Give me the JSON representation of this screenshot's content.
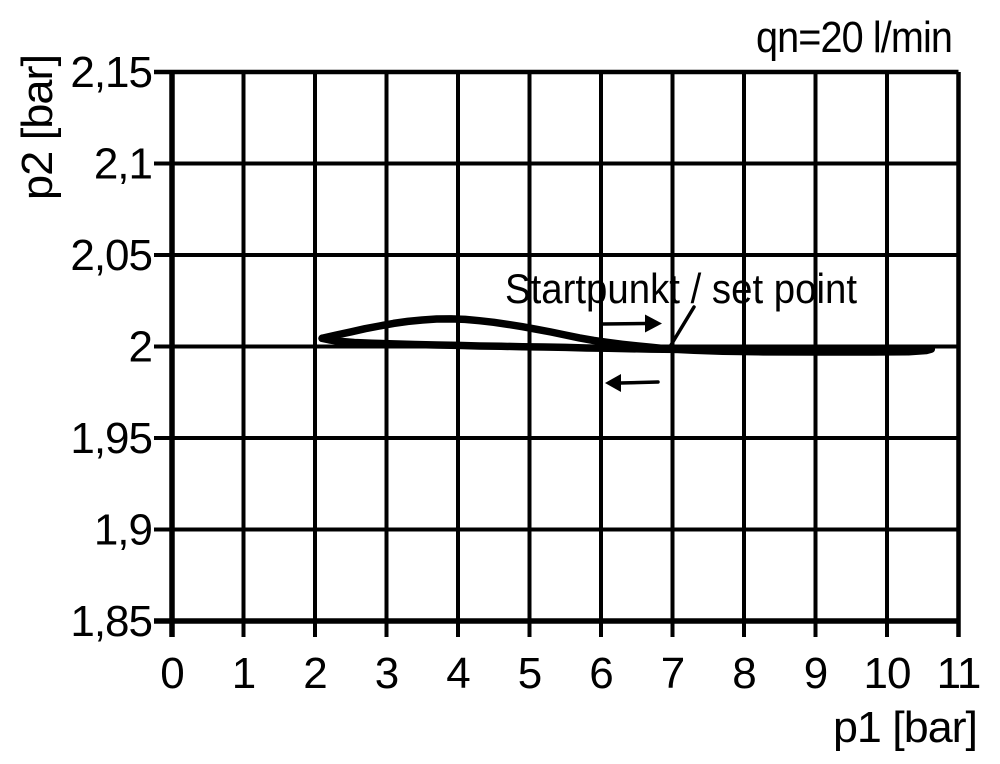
{
  "chart_data": {
    "type": "line",
    "title": "qn=20 l/min",
    "xlabel": "p1 [bar]",
    "ylabel": "p2 [bar]",
    "xlim": [
      0,
      11
    ],
    "ylim": [
      1.85,
      2.15
    ],
    "x_tick_step": 1,
    "y_tick_step": 0.05,
    "grid": true,
    "decimal_separator": ",",
    "line_color": "#000000",
    "background_color": "#ffffff",
    "x_tick_labels": [
      "0",
      "1",
      "2",
      "3",
      "4",
      "5",
      "6",
      "7",
      "8",
      "9",
      "10",
      "11"
    ],
    "y_tick_labels": [
      "2,15",
      "2,1",
      "2,05",
      "2",
      "1,95",
      "1,9",
      "1,85"
    ],
    "annotations": [
      {
        "text": "Startpunkt / set point",
        "target": {
          "p1": 7.05,
          "p2": 1.998
        }
      }
    ],
    "flow_arrows": [
      {
        "direction": "right",
        "meaning": "p1 increasing along upper branch",
        "p1": 6.3,
        "p2": 2.013
      },
      {
        "direction": "left",
        "meaning": "p1 decreasing along lower branch",
        "p1": 6.3,
        "p2": 1.98
      }
    ],
    "series": [
      {
        "name": "p1 increasing (upper branch through set point)",
        "points": [
          [
            2.1,
            2.0045
          ],
          [
            2.3,
            2.0063
          ],
          [
            2.5,
            2.008
          ],
          [
            2.7,
            2.0097
          ],
          [
            2.9,
            2.0112
          ],
          [
            3.1,
            2.0126
          ],
          [
            3.3,
            2.0137
          ],
          [
            3.5,
            2.0145
          ],
          [
            3.7,
            2.015
          ],
          [
            3.9,
            2.0151
          ],
          [
            4.1,
            2.0148
          ],
          [
            4.3,
            2.0141
          ],
          [
            4.5,
            2.0132
          ],
          [
            4.7,
            2.0121
          ],
          [
            4.9,
            2.0108
          ],
          [
            5.1,
            2.0094
          ],
          [
            5.3,
            2.0079
          ],
          [
            5.5,
            2.0063
          ],
          [
            5.7,
            2.0047
          ],
          [
            5.9,
            2.0033
          ],
          [
            6.1,
            2.0022
          ],
          [
            6.3,
            2.0012
          ],
          [
            6.5,
            2.0004
          ],
          [
            6.7,
            1.9996
          ],
          [
            6.9,
            1.9988
          ],
          [
            7.05,
            1.9984
          ],
          [
            7.3,
            1.9979
          ],
          [
            7.7,
            1.9974
          ],
          [
            8.2,
            1.9971
          ],
          [
            9.0,
            1.997
          ],
          [
            9.8,
            1.997
          ],
          [
            10.3,
            1.9971
          ],
          [
            10.55,
            1.9978
          ],
          [
            10.62,
            1.9986
          ]
        ]
      },
      {
        "name": "p1 decreasing (lower return branch)",
        "points": [
          [
            7.05,
            1.9984
          ],
          [
            6.7,
            1.9986
          ],
          [
            6.4,
            1.9988
          ],
          [
            6.1,
            1.999
          ],
          [
            5.8,
            1.9992
          ],
          [
            5.5,
            1.9995
          ],
          [
            5.2,
            1.9997
          ],
          [
            4.9,
            1.9999
          ],
          [
            4.6,
            2.0001
          ],
          [
            4.3,
            2.0003
          ],
          [
            4.0,
            2.0006
          ],
          [
            3.7,
            2.0008
          ],
          [
            3.4,
            2.0011
          ],
          [
            3.1,
            2.0014
          ],
          [
            2.8,
            2.0018
          ],
          [
            2.55,
            2.0022
          ],
          [
            2.35,
            2.0028
          ],
          [
            2.2,
            2.0036
          ],
          [
            2.1,
            2.0045
          ]
        ]
      }
    ]
  }
}
